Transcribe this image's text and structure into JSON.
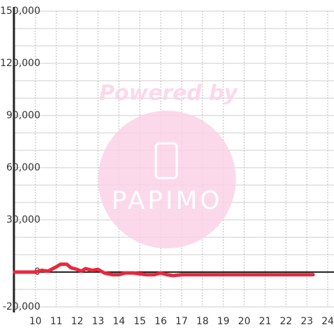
{
  "chart_data": {
    "type": "line",
    "watermark": {
      "line1": "Powered by",
      "line2": "PAPIMO"
    },
    "x": [
      9,
      9.5,
      10,
      10.3,
      10.6,
      11,
      11.2,
      11.5,
      11.7,
      12,
      12.2,
      12.4,
      12.7,
      13,
      13.3,
      13.7,
      14,
      14.3,
      14.7,
      15,
      15.3,
      15.7,
      16,
      16.3,
      16.6,
      17,
      17.5,
      18,
      19,
      20,
      21,
      22,
      23,
      23.3
    ],
    "series": [
      {
        "name": null,
        "color": "#e8283c",
        "values": [
          0,
          0,
          0,
          1000,
          500,
          3000,
          4500,
          4500,
          2500,
          1500,
          500,
          2000,
          1000,
          1500,
          -500,
          -1500,
          -1500,
          -500,
          -500,
          -1000,
          -1500,
          -1500,
          -500,
          -1500,
          -2000,
          -1500,
          -1500,
          -1500,
          -1500,
          -1500,
          -1500,
          -1500,
          -1500,
          -1500
        ]
      }
    ],
    "xlim": [
      8.97,
      24.3
    ],
    "xticks": [
      10,
      11,
      12,
      13,
      14,
      15,
      16,
      17,
      18,
      19,
      20,
      21,
      22,
      23,
      24
    ],
    "ylim": [
      -20000,
      150000
    ],
    "yticks": [
      {
        "value": -20000,
        "label": "-20,000"
      },
      0,
      {
        "value": 30000,
        "label": "30,000"
      },
      {
        "value": 60000,
        "label": "60,000"
      },
      {
        "value": 90000,
        "label": "90,000"
      },
      {
        "value": 120000,
        "label": "120,000"
      },
      {
        "value": 150000,
        "label": "150,000"
      }
    ],
    "yminorticks": [
      -10000,
      10000,
      20000,
      40000,
      50000,
      70000,
      80000,
      100000,
      110000,
      130000,
      140000
    ],
    "grid": true
  }
}
